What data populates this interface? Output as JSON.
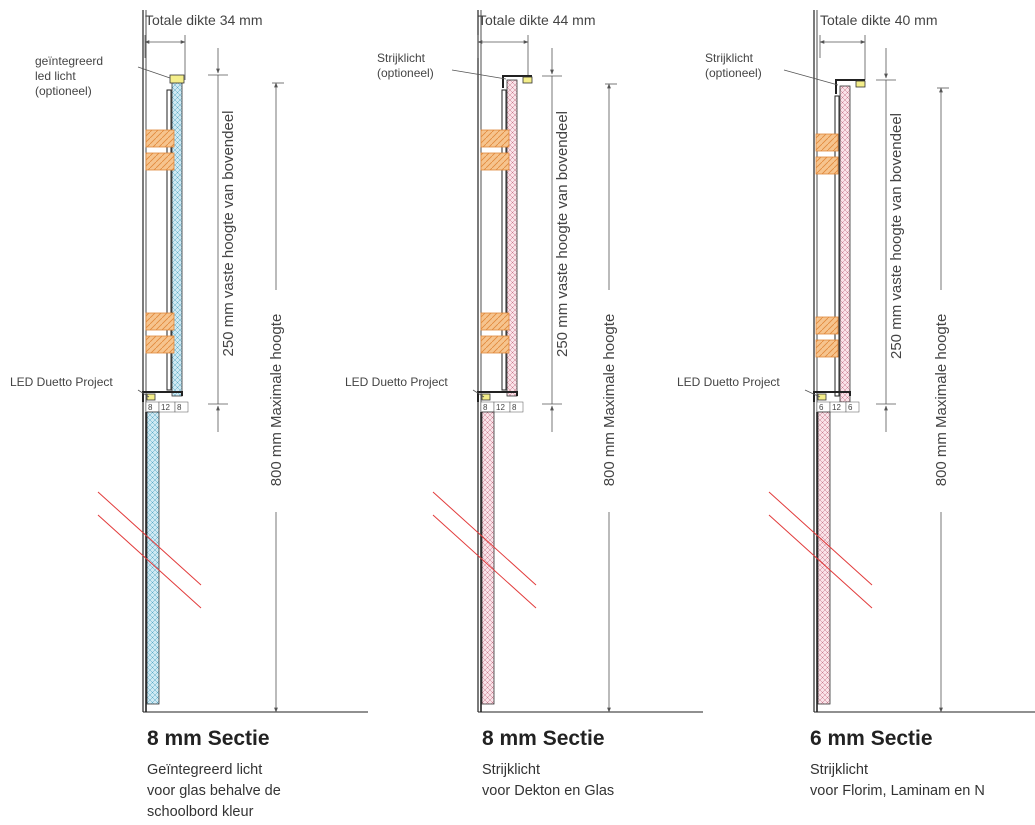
{
  "sections": [
    {
      "thickness_label": "Totale dikte 34 mm",
      "light_label": [
        "geïntegreerd",
        "led licht",
        "(optioneel)"
      ],
      "led_label": "LED Duetto Project",
      "dims": [
        "8",
        "12",
        "8"
      ],
      "vertical_250": "250 mm vaste hoogte van bovendeel",
      "vertical_800": "800 mm Maximale hoogte",
      "title": "8 mm Sectie",
      "desc": [
        "Geïntegreerd licht",
        "voor glas behalve de",
        "schoolbord kleur"
      ],
      "panel_color": "#cfe9f3",
      "panel_stroke": "#5aa9c5"
    },
    {
      "thickness_label": "Totale dikte 44 mm",
      "light_label": [
        "Strijklicht",
        "(optioneel)"
      ],
      "led_label": "LED Duetto Project",
      "dims": [
        "8",
        "12",
        "8"
      ],
      "vertical_250": "250 mm vaste hoogte van bovendeel",
      "vertical_800": "800 mm Maximale hoogte",
      "title": "8 mm Sectie",
      "desc": [
        "Strijklicht",
        "voor Dekton en Glas"
      ],
      "panel_color": "#f5d3dc",
      "panel_stroke": "#c9798d"
    },
    {
      "thickness_label": "Totale dikte 40 mm",
      "light_label": [
        "Strijklicht",
        "(optioneel)"
      ],
      "led_label": "LED Duetto Project",
      "dims": [
        "6",
        "12",
        "6"
      ],
      "vertical_250": "250 mm vaste hoogte van bovendeel",
      "vertical_800": "800 mm Maximale hoogte",
      "title": "6 mm Sectie",
      "desc": [
        "Strijklicht",
        "voor Florim, Laminam en N"
      ],
      "panel_color": "#f5d3dc",
      "panel_stroke": "#c9798d"
    }
  ],
  "colors": {
    "wood": "#f6c48e",
    "wood_stroke": "#e0883a",
    "led": "#f4ee8a",
    "break_line": "#e23b3b",
    "dim_line": "#555555"
  }
}
